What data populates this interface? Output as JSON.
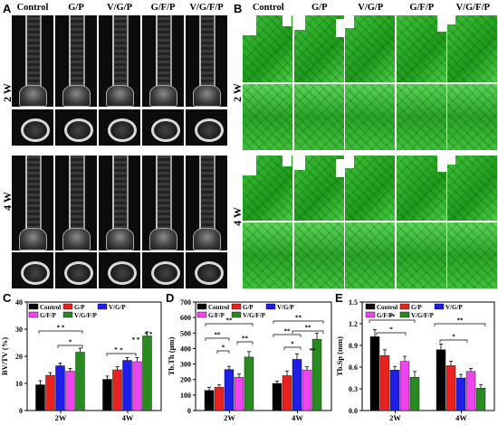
{
  "panel_labels": {
    "a": "A",
    "b": "B",
    "c": "C",
    "d": "D",
    "e": "E"
  },
  "columns": [
    "Control",
    "G/P",
    "V/G/P",
    "G/F/P",
    "V/G/F/P"
  ],
  "timepoints": [
    "2 W",
    "4 W"
  ],
  "colors": {
    "Control": "#000000",
    "G/P": "#e8231f",
    "V/G/P": "#1e1ee6",
    "G/F/P": "#ee44ee",
    "V/G/F/P": "#2a8a22",
    "microCT_green": "#2fb12b"
  },
  "chart_data": [
    {
      "type": "bar",
      "panel": "C",
      "ylabel": "BV/TV (%)",
      "categories": [
        "2W",
        "4W"
      ],
      "ylim": [
        0,
        40
      ],
      "yticks": [
        "0",
        "10",
        "20",
        "30",
        "40"
      ],
      "series": [
        {
          "name": "Control",
          "values": [
            9.5,
            11.5
          ]
        },
        {
          "name": "G/P",
          "values": [
            13,
            15
          ]
        },
        {
          "name": "V/G/P",
          "values": [
            16.5,
            18.5
          ]
        },
        {
          "name": "G/F/P",
          "values": [
            14.5,
            18
          ]
        },
        {
          "name": "V/G/F/P",
          "values": [
            21.5,
            27.5
          ]
        }
      ],
      "errors": [
        [
          1.5,
          1.2
        ],
        [
          1,
          1.2
        ],
        [
          1,
          1
        ],
        [
          1,
          1.5
        ],
        [
          1.5,
          1.5
        ]
      ],
      "legend_position": "top-left",
      "annotations": [
        "* *",
        "*",
        "*",
        "* *",
        "*",
        "* *"
      ]
    },
    {
      "type": "bar",
      "panel": "D",
      "ylabel": "Tb.Th (μm)",
      "categories": [
        "2W",
        "4W"
      ],
      "ylim": [
        0,
        700
      ],
      "yticks": [
        "0",
        "100",
        "200",
        "300",
        "400",
        "500",
        "600",
        "700"
      ],
      "series": [
        {
          "name": "Control",
          "values": [
            130,
            175
          ]
        },
        {
          "name": "G/P",
          "values": [
            150,
            225
          ]
        },
        {
          "name": "V/G/P",
          "values": [
            265,
            330
          ]
        },
        {
          "name": "G/F/P",
          "values": [
            215,
            262
          ]
        },
        {
          "name": "V/G/F/P",
          "values": [
            345,
            460
          ]
        }
      ],
      "errors": [
        [
          20,
          15
        ],
        [
          15,
          30
        ],
        [
          20,
          35
        ],
        [
          20,
          20
        ],
        [
          35,
          40
        ]
      ],
      "legend_position": "top-left",
      "annotations": [
        "**",
        "**",
        "*",
        "**",
        "**",
        "**",
        "*",
        "**",
        "**"
      ]
    },
    {
      "type": "bar",
      "panel": "E",
      "ylabel": "Tb.Sp (mm)",
      "categories": [
        "2W",
        "4W"
      ],
      "ylim": [
        0,
        1.5
      ],
      "yticks": [
        "0.0",
        "0.3",
        "0.6",
        "0.9",
        "1.2",
        "1.5"
      ],
      "series": [
        {
          "name": "Control",
          "values": [
            1.02,
            0.84
          ]
        },
        {
          "name": "G/P",
          "values": [
            0.76,
            0.62
          ]
        },
        {
          "name": "V/G/P",
          "values": [
            0.56,
            0.45
          ]
        },
        {
          "name": "G/F/P",
          "values": [
            0.68,
            0.54
          ]
        },
        {
          "name": "V/G/F/P",
          "values": [
            0.46,
            0.31
          ]
        }
      ],
      "errors": [
        [
          0.1,
          0.08
        ],
        [
          0.08,
          0.06
        ],
        [
          0.05,
          0.05
        ],
        [
          0.07,
          0.04
        ],
        [
          0.08,
          0.05
        ]
      ],
      "legend_position": "top-left",
      "annotations": [
        "**",
        "*",
        "**",
        "*"
      ]
    }
  ]
}
